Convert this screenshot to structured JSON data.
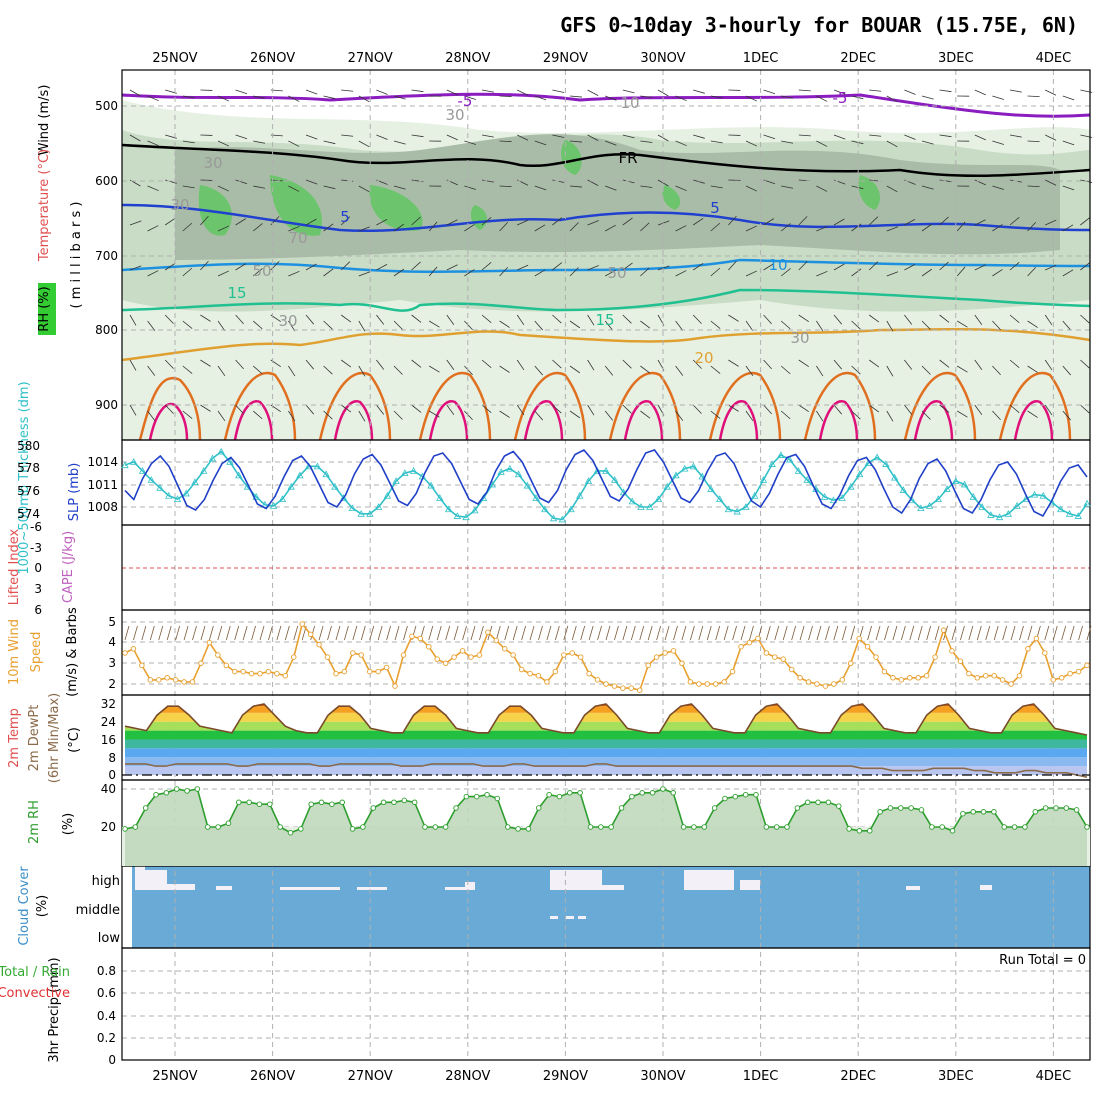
{
  "title": "GFS 0~10day 3-hourly for BOUAR (15.75E, 6N)",
  "dates": [
    "25NOV",
    "26NOV",
    "27NOV",
    "28NOV",
    "29NOV",
    "30NOV",
    "1DEC",
    "2DEC",
    "3DEC",
    "4DEC"
  ],
  "colors": {
    "frame": "#000000",
    "grid": "#b0b0b0",
    "wind_barb": "#333333",
    "precip_bg": "#ffffff"
  },
  "panels": {
    "upper": {
      "labels": {
        "rh": "RH (%)",
        "temperature": "Temperature (°C)",
        "wind": "Wind (m/s)",
        "millibars": "( m i l l i b a r s )"
      },
      "yticks": [
        "500",
        "600",
        "700",
        "800",
        "900"
      ],
      "contour_labels": [
        "-5",
        "-5",
        "FR",
        "5",
        "5",
        "10",
        "15",
        "15",
        "20",
        "10",
        "30",
        "30",
        "50",
        "50",
        "70",
        "30",
        "30",
        "30"
      ]
    },
    "pressure": {
      "labels": {
        "thickness": "1000~500mb Thickness (dm)",
        "slp": "SLP (mb)"
      },
      "left_ticks": [
        "580",
        "578",
        "576",
        "574"
      ],
      "right_ticks": [
        "1014",
        "1011",
        "1008"
      ]
    },
    "stability": {
      "labels": {
        "lifted": "Lifted Index",
        "cape": "CAPE (J/kg)"
      },
      "ticks": [
        "-6",
        "-3",
        "0",
        "3",
        "6"
      ]
    },
    "wind10": {
      "labels": {
        "title": "10m Wind",
        "speed": "Speed",
        "barbs": "(m/s) & Barbs"
      },
      "ticks": [
        "5",
        "4",
        "3",
        "2"
      ]
    },
    "temp2m": {
      "labels": {
        "temp": "2m Temp",
        "dewpt": "2m DewPt",
        "minmax": "(6hr Min/Max)",
        "unit": "(°C)"
      },
      "ticks": [
        "32",
        "24",
        "16",
        "8",
        "0"
      ]
    },
    "rh2m": {
      "labels": {
        "title": "2m RH",
        "unit": "(%)"
      },
      "ticks": [
        "40",
        "20"
      ]
    },
    "cloud": {
      "labels": {
        "title": "Cloud Cover",
        "unit": "(%)"
      },
      "levels": [
        "high",
        "middle",
        "low"
      ]
    },
    "precip": {
      "labels": {
        "total": "Total / Rain",
        "convective": "Convective",
        "axis": "3hr Precip (mm)"
      },
      "ticks": [
        "0.8",
        "0.6",
        "0.4",
        "0.2",
        "0"
      ],
      "run_total": "Run Total = 0"
    }
  },
  "chart_data": [
    {
      "type": "line",
      "title": "1000~500mb Thickness (dm) / SLP (mb)",
      "x_step_hours": 3,
      "series": [
        {
          "name": "1000~500mb Thickness (dm)",
          "color": "#30c0c8",
          "values": [
            578.3,
            578.6,
            577.8,
            577.0,
            576.3,
            575.6,
            575.3,
            575.8,
            576.8,
            577.8,
            578.9,
            579.5,
            578.6,
            577.4,
            576.4,
            575.5,
            574.8,
            574.7,
            575.3,
            576.4,
            577.4,
            578.2,
            578.2,
            577.5,
            576.4,
            575.4,
            574.5,
            574.0,
            574.0,
            574.6,
            575.6,
            576.9,
            577.6,
            577.8,
            577.3,
            576.5,
            575.4,
            574.4,
            573.8,
            573.7,
            574.3,
            575.4,
            576.6,
            577.7,
            578.0,
            577.5,
            576.5,
            575.4,
            574.4,
            573.6,
            573.5,
            574.4,
            575.6,
            576.9,
            577.8,
            577.8,
            577.0,
            575.9,
            575.1,
            574.6,
            574.6,
            575.3,
            576.4,
            577.4,
            578.0,
            578.2,
            577.3,
            576.2,
            575.3,
            574.4,
            574.2,
            574.6,
            575.6,
            577.0,
            578.4,
            579.2,
            578.8,
            577.8,
            577.0,
            576.2,
            575.5,
            575.2,
            575.4,
            576.4,
            577.5,
            578.5,
            579.0,
            578.4,
            577.2,
            576.1,
            575.2,
            574.5,
            574.7,
            575.3,
            576.2,
            576.9,
            576.6,
            575.5,
            574.6,
            573.9,
            573.7,
            574.0,
            574.7,
            575.3,
            575.7,
            575.6,
            575.0,
            574.4,
            574.0,
            573.8,
            574.9
          ]
        },
        {
          "name": "SLP (mb)",
          "color": "#2040c8",
          "values": [
            1010.2,
            1009.0,
            1011.8,
            1013.8,
            1014.8,
            1013.4,
            1010.8,
            1008.2,
            1007.6,
            1009.0,
            1011.6,
            1013.8,
            1014.6,
            1013.2,
            1010.8,
            1008.4,
            1007.8,
            1009.4,
            1012.0,
            1014.2,
            1014.8,
            1013.4,
            1011.0,
            1008.6,
            1008.0,
            1009.6,
            1012.4,
            1014.4,
            1015.0,
            1013.6,
            1011.2,
            1008.8,
            1008.2,
            1009.8,
            1012.6,
            1014.8,
            1015.2,
            1013.8,
            1011.4,
            1009.0,
            1008.4,
            1010.0,
            1012.8,
            1014.8,
            1015.4,
            1014.0,
            1011.6,
            1009.2,
            1008.6,
            1010.2,
            1013.0,
            1015.0,
            1015.6,
            1014.2,
            1011.8,
            1009.4,
            1008.8,
            1010.4,
            1013.0,
            1015.2,
            1015.6,
            1014.0,
            1011.6,
            1009.2,
            1008.6,
            1010.2,
            1012.8,
            1014.8,
            1015.2,
            1013.8,
            1011.2,
            1008.8,
            1008.0,
            1009.8,
            1012.4,
            1014.6,
            1015.0,
            1013.4,
            1010.8,
            1008.4,
            1007.8,
            1009.6,
            1012.2,
            1014.2,
            1014.6,
            1013.0,
            1010.4,
            1008.0,
            1007.2,
            1009.0,
            1011.8,
            1013.8,
            1014.4,
            1012.8,
            1010.2,
            1007.8,
            1007.2,
            1009.0,
            1011.6,
            1013.6,
            1014.0,
            1012.4,
            1009.8,
            1007.4,
            1006.8,
            1008.8,
            1011.4,
            1013.2,
            1013.6,
            1012.0
          ]
        }
      ]
    },
    {
      "type": "line",
      "title": "10m Wind Speed (m/s)",
      "x_step_hours": 3,
      "series": [
        {
          "name": "Speed",
          "color": "#e8a030",
          "values": [
            3.5,
            3.7,
            2.9,
            2.2,
            2.2,
            2.3,
            2.2,
            2.1,
            2.1,
            3.0,
            4.0,
            3.4,
            2.9,
            2.6,
            2.6,
            2.5,
            2.5,
            2.6,
            2.5,
            2.4,
            3.3,
            4.9,
            4.4,
            3.9,
            3.3,
            2.5,
            2.6,
            3.5,
            3.4,
            2.6,
            2.6,
            2.8,
            1.9,
            3.4,
            4.3,
            4.2,
            3.8,
            3.2,
            3.0,
            3.3,
            3.6,
            3.3,
            3.4,
            4.5,
            4.1,
            3.7,
            3.4,
            2.7,
            2.5,
            2.4,
            2.1,
            2.6,
            3.4,
            3.5,
            3.3,
            2.5,
            2.2,
            2.0,
            1.9,
            1.8,
            1.8,
            1.7,
            2.9,
            3.3,
            3.5,
            3.6,
            3.0,
            2.1,
            2.0,
            2.0,
            2.0,
            2.1,
            2.6,
            3.8,
            4.0,
            4.2,
            3.5,
            3.3,
            3.2,
            2.7,
            2.3,
            2.1,
            2.0,
            1.9,
            2.0,
            2.2,
            3.0,
            4.2,
            3.8,
            3.3,
            2.6,
            2.3,
            2.2,
            2.3,
            2.3,
            2.4,
            3.3,
            4.6,
            3.6,
            3.1,
            2.5,
            2.3,
            2.4,
            2.4,
            2.2,
            2.0,
            2.4,
            3.7,
            4.2,
            3.5,
            2.2,
            2.3,
            2.5,
            2.6,
            2.9
          ]
        }
      ]
    },
    {
      "type": "line",
      "title": "2m RH (%)",
      "x_step_hours": 3,
      "series": [
        {
          "name": "2m RH",
          "color": "#2e9e2e",
          "values": [
            19,
            20,
            30,
            37,
            38,
            40,
            39,
            40,
            20,
            20,
            22,
            33,
            33,
            32,
            32,
            20,
            17,
            19,
            32,
            33,
            32,
            33,
            19,
            20,
            30,
            33,
            33,
            34,
            33,
            20,
            20,
            20,
            30,
            36,
            36,
            37,
            35,
            20,
            19,
            19,
            30,
            37,
            36,
            38,
            38,
            20,
            20,
            20,
            30,
            36,
            38,
            38,
            40,
            38,
            20,
            20,
            20,
            30,
            35,
            36,
            37,
            37,
            20,
            20,
            20,
            30,
            33,
            33,
            33,
            31,
            19,
            18,
            18,
            28,
            30,
            30,
            30,
            29,
            20,
            20,
            18,
            27,
            28,
            28,
            28,
            20,
            20,
            20,
            28,
            30,
            30,
            30,
            29,
            20
          ]
        }
      ]
    },
    {
      "type": "area",
      "title": "2m Temp (°C)",
      "x_step_hours": 3,
      "series": [
        {
          "name": "2m Temp",
          "color": "#e06000",
          "values": [
            22,
            21,
            20,
            27,
            31,
            31,
            27,
            22,
            21,
            20,
            19,
            27,
            31,
            32,
            27,
            22,
            20,
            19,
            19,
            27,
            31,
            31,
            27,
            21,
            20,
            19,
            19,
            27,
            31,
            31,
            27,
            21,
            20,
            19,
            19,
            27,
            31,
            31,
            27,
            21,
            20,
            19,
            19,
            27,
            31,
            32,
            27,
            21,
            20,
            19,
            19,
            27,
            31,
            32,
            27,
            21,
            20,
            19,
            19,
            27,
            31,
            32,
            27,
            21,
            20,
            19,
            19,
            27,
            31,
            32,
            27,
            21,
            20,
            19,
            19,
            27,
            31,
            32,
            27,
            21,
            20,
            19,
            19,
            27,
            31,
            32,
            27,
            21,
            20,
            19,
            18
          ]
        },
        {
          "name": "2m DewPt",
          "color": "#8a6a4a",
          "values": [
            5,
            5,
            5,
            4,
            4,
            5,
            5,
            5,
            5,
            5,
            5,
            4,
            4,
            5,
            5,
            5,
            5,
            5,
            5,
            4,
            4,
            5,
            5,
            5,
            5,
            5,
            5,
            4,
            4,
            4,
            5,
            5,
            5,
            5,
            5,
            4,
            4,
            4,
            5,
            5,
            4,
            4,
            4,
            4,
            4,
            4,
            5,
            5,
            4,
            4,
            4,
            4,
            4,
            4,
            4,
            4,
            4,
            4,
            4,
            4,
            4,
            4,
            4,
            4,
            4,
            4,
            4,
            4,
            4,
            4,
            4,
            4,
            3,
            3,
            3,
            2,
            2,
            2,
            2,
            3,
            3,
            3,
            3,
            2,
            2,
            1,
            1,
            1,
            2,
            2,
            1,
            1,
            1,
            0,
            -1
          ]
        }
      ]
    }
  ]
}
